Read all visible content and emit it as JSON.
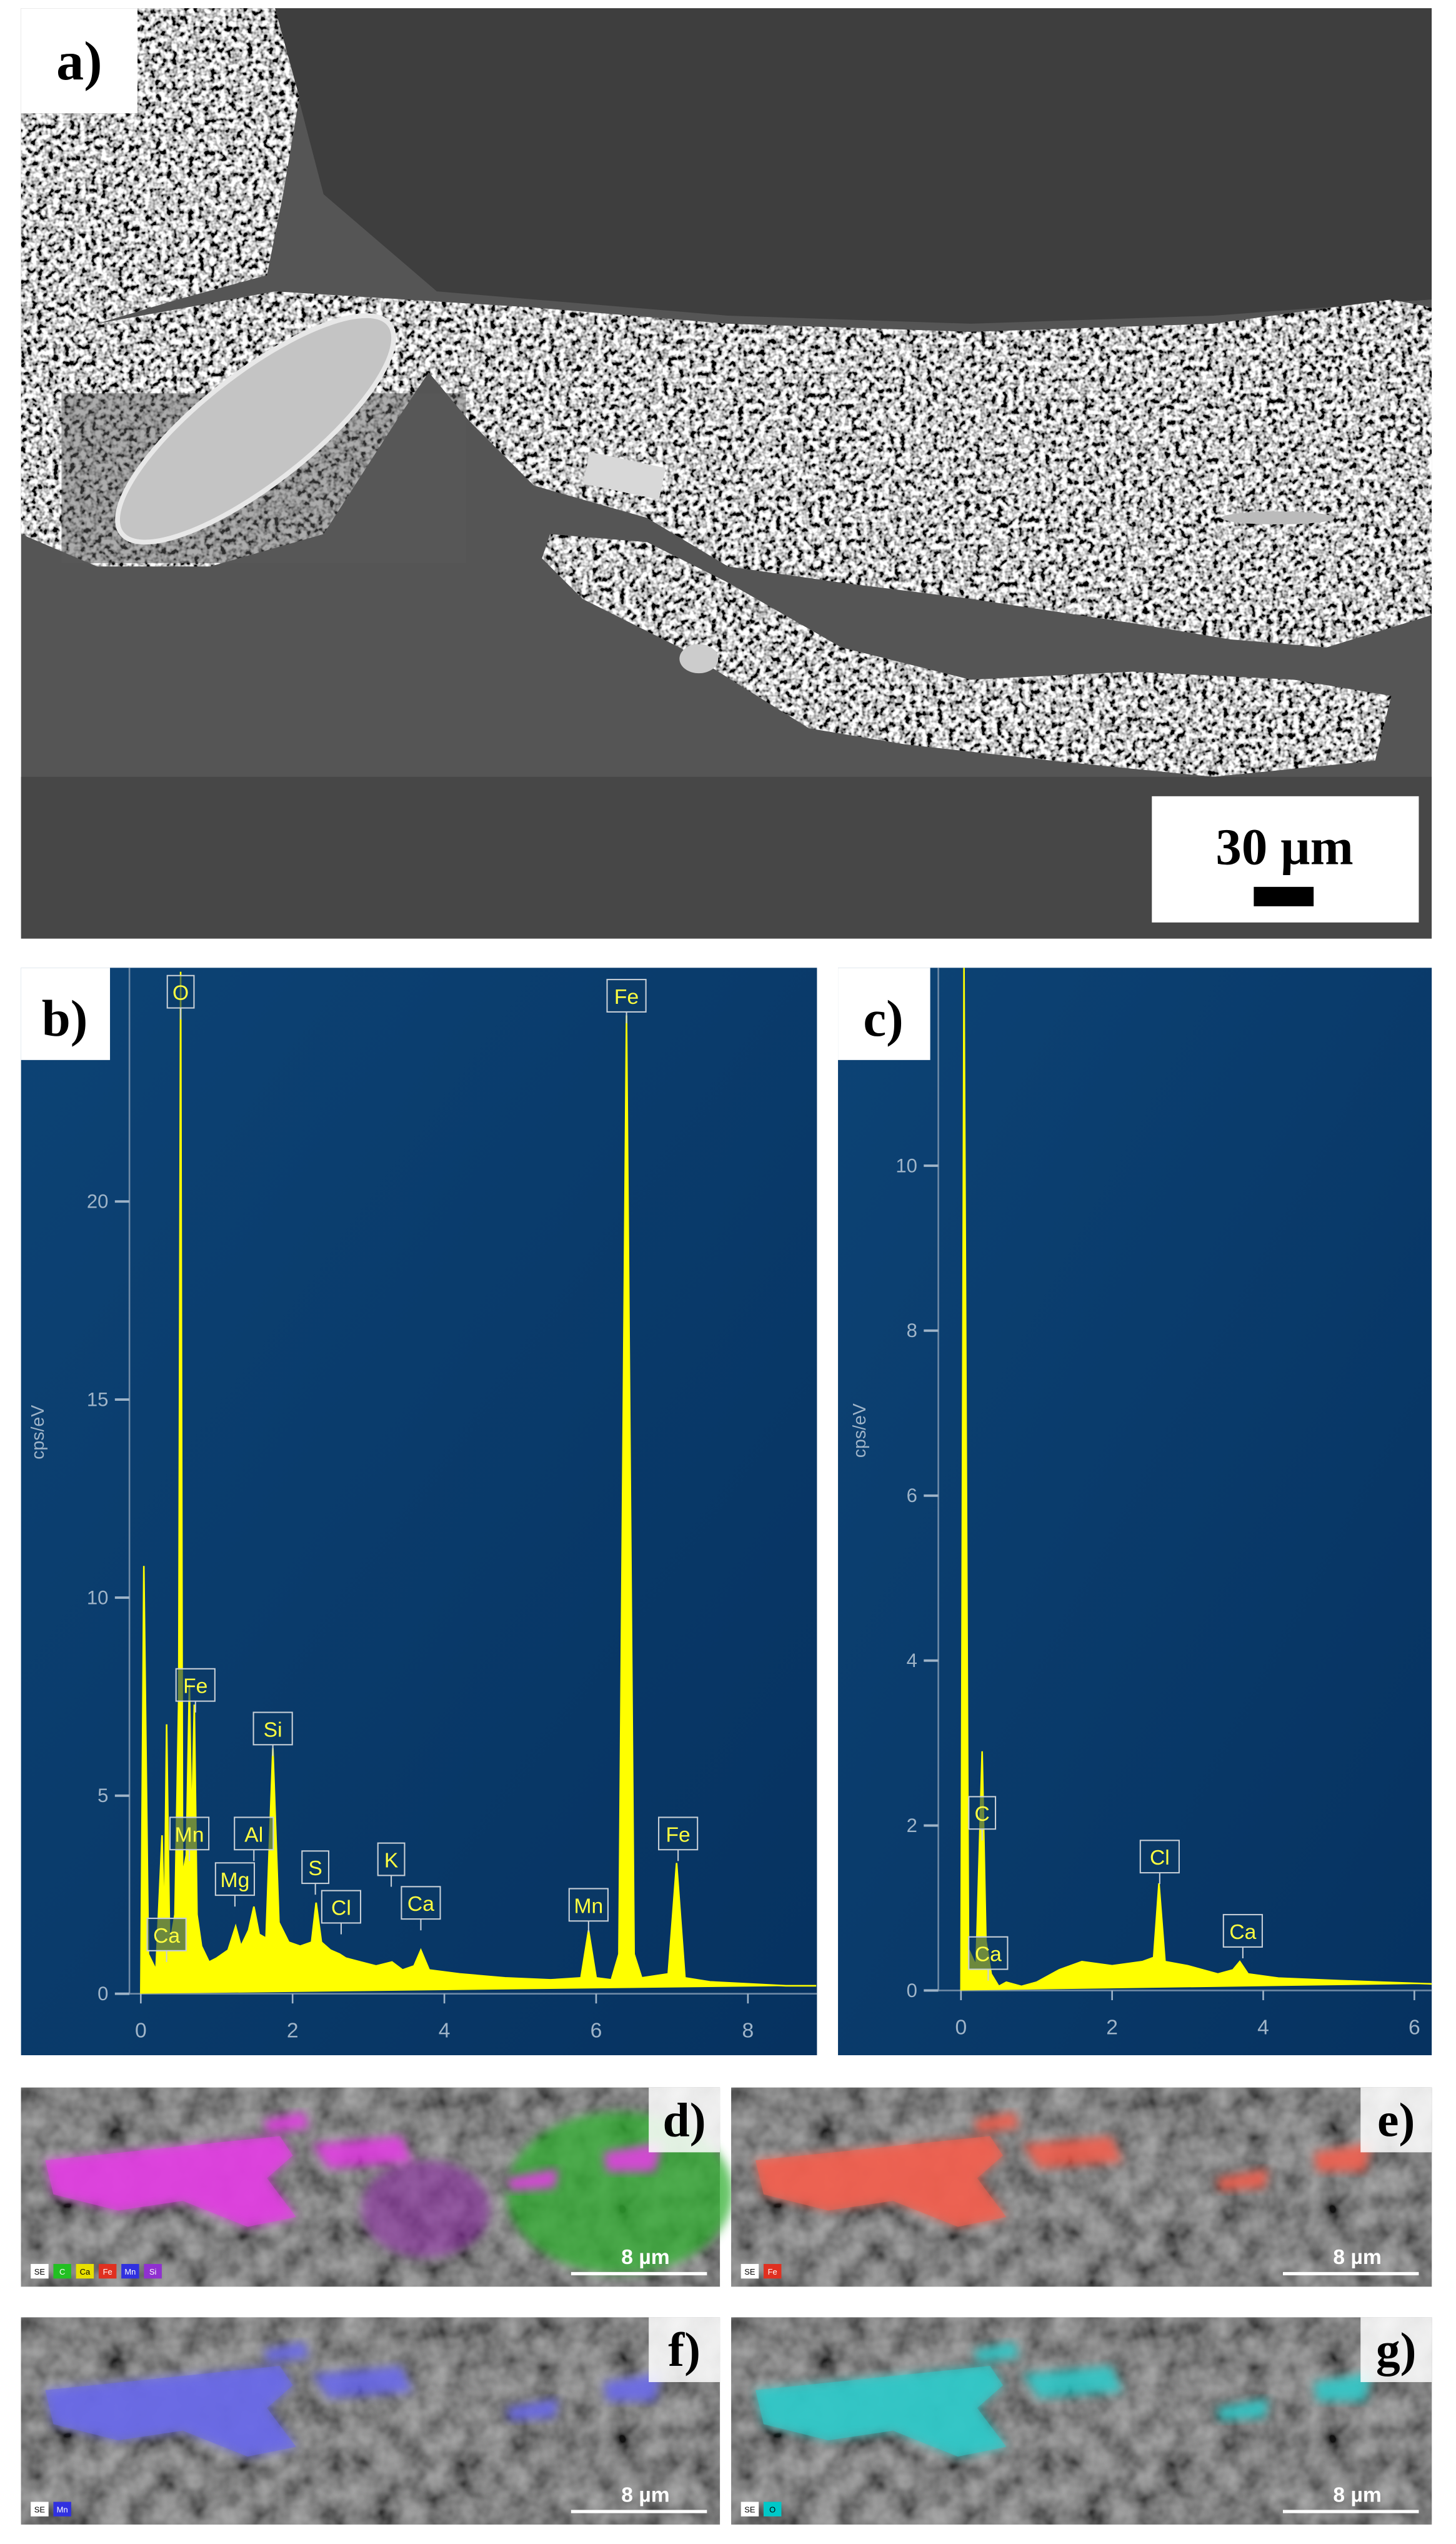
{
  "panels": {
    "a": {
      "label": "a)",
      "scale_bar": "30 µm"
    },
    "b": {
      "label": "b)"
    },
    "c": {
      "label": "c)"
    },
    "d": {
      "label": "d)",
      "scale_bar": "8 µm",
      "legend": [
        {
          "name": "SE",
          "color": "#ffffff"
        },
        {
          "name": "C",
          "color": "#22c022"
        },
        {
          "name": "Ca",
          "color": "#e8e000"
        },
        {
          "name": "Fe",
          "color": "#e03020"
        },
        {
          "name": "Mn",
          "color": "#3030e0"
        },
        {
          "name": "Si",
          "color": "#9030d0"
        }
      ]
    },
    "e": {
      "label": "e)",
      "scale_bar": "8 µm",
      "legend": [
        {
          "name": "SE",
          "color": "#ffffff"
        },
        {
          "name": "Fe",
          "color": "#e03020"
        }
      ]
    },
    "f": {
      "label": "f)",
      "scale_bar": "8 µm",
      "legend": [
        {
          "name": "SE",
          "color": "#ffffff"
        },
        {
          "name": "Mn",
          "color": "#3030e0"
        }
      ]
    },
    "g": {
      "label": "g)",
      "scale_bar": "8 µm",
      "legend": [
        {
          "name": "SE",
          "color": "#ffffff"
        },
        {
          "name": "O",
          "color": "#00c8c8"
        }
      ]
    }
  },
  "chart_data": [
    {
      "type": "area",
      "ylabel": "cps/eV",
      "color": "#ffff00",
      "x": [
        0,
        0.04,
        0.1,
        0.2,
        0.28,
        0.31,
        0.34,
        0.38,
        0.45,
        0.5,
        0.525,
        0.55,
        0.6,
        0.64,
        0.67,
        0.705,
        0.74,
        0.8,
        0.9,
        1.0,
        1.15,
        1.25,
        1.32,
        1.42,
        1.49,
        1.56,
        1.65,
        1.74,
        1.82,
        1.95,
        2.1,
        2.25,
        2.31,
        2.38,
        2.5,
        2.62,
        2.7,
        2.9,
        3.1,
        3.31,
        3.45,
        3.6,
        3.69,
        3.8,
        4.2,
        4.8,
        5.4,
        5.8,
        5.9,
        6.0,
        6.2,
        6.3,
        6.4,
        6.5,
        6.6,
        6.95,
        7.06,
        7.17,
        7.5,
        8.0,
        8.5,
        8.9
      ],
      "values": [
        0,
        10.8,
        1.0,
        0.6,
        4.0,
        1.5,
        6.8,
        1.2,
        2.0,
        7.5,
        25.8,
        3.0,
        3.5,
        7.8,
        4.0,
        7.3,
        2.0,
        1.2,
        0.8,
        0.9,
        1.1,
        1.7,
        1.2,
        1.6,
        2.2,
        1.5,
        1.4,
        6.2,
        1.8,
        1.3,
        1.2,
        1.3,
        2.3,
        1.3,
        1.1,
        1.0,
        0.9,
        0.8,
        0.7,
        0.8,
        0.6,
        0.7,
        1.1,
        0.6,
        0.5,
        0.4,
        0.35,
        0.4,
        1.6,
        0.4,
        0.35,
        1.0,
        24.7,
        1.0,
        0.4,
        0.5,
        3.3,
        0.4,
        0.3,
        0.25,
        0.2,
        0.2
      ],
      "xlim": [
        -0.15,
        8.91
      ],
      "ylim": [
        0,
        25.9
      ],
      "xticks": [
        0,
        2,
        4,
        6,
        8
      ],
      "yticks": [
        0,
        5,
        10,
        15,
        20
      ],
      "peak_labels": [
        {
          "text": "O",
          "x": 0.525,
          "y": 24.6
        },
        {
          "text": "Fe",
          "x": 6.4,
          "y": 24.5
        },
        {
          "text": "Fe",
          "x": 0.72,
          "y": 7.1
        },
        {
          "text": "Si",
          "x": 1.74,
          "y": 6.0
        },
        {
          "text": "Mn",
          "x": 0.64,
          "y": 3.35
        },
        {
          "text": "Al",
          "x": 1.49,
          "y": 3.35
        },
        {
          "text": "Mg",
          "x": 1.24,
          "y": 2.2
        },
        {
          "text": "S",
          "x": 2.3,
          "y": 2.5
        },
        {
          "text": "Cl",
          "x": 2.64,
          "y": 1.5
        },
        {
          "text": "K",
          "x": 3.3,
          "y": 2.7
        },
        {
          "text": "Ca",
          "x": 3.69,
          "y": 1.6
        },
        {
          "text": "Mn",
          "x": 5.9,
          "y": 1.55
        },
        {
          "text": "Fe",
          "x": 7.08,
          "y": 3.35
        },
        {
          "text": "Ca",
          "x": 0.34,
          "y": 0.8
        }
      ]
    },
    {
      "type": "area",
      "ylabel": "cps/eV",
      "color": "#ffff00",
      "x": [
        0,
        0.04,
        0.1,
        0.2,
        0.28,
        0.33,
        0.4,
        0.5,
        0.6,
        0.8,
        1.0,
        1.3,
        1.6,
        2.0,
        2.4,
        2.55,
        2.62,
        2.7,
        3.0,
        3.4,
        3.6,
        3.69,
        3.8,
        4.2,
        5.0,
        5.6,
        6.23
      ],
      "values": [
        0,
        12.4,
        0.5,
        0.3,
        2.9,
        0.6,
        0.2,
        0.05,
        0.1,
        0.05,
        0.1,
        0.25,
        0.35,
        0.3,
        0.35,
        0.4,
        1.3,
        0.35,
        0.3,
        0.2,
        0.25,
        0.35,
        0.2,
        0.15,
        0.12,
        0.1,
        0.08
      ],
      "xlim": [
        -0.3,
        6.23
      ],
      "ylim": [
        0,
        12.4
      ],
      "xticks": [
        0,
        2,
        4,
        6
      ],
      "yticks": [
        0,
        2,
        4,
        6,
        8,
        10
      ],
      "peak_labels": [
        {
          "text": "C",
          "x": 0.28,
          "y": 1.82
        },
        {
          "text": "Ca",
          "x": 0.36,
          "y": 0.12
        },
        {
          "text": "Cl",
          "x": 2.63,
          "y": 1.29
        },
        {
          "text": "Ca",
          "x": 3.73,
          "y": 0.39
        }
      ]
    }
  ]
}
